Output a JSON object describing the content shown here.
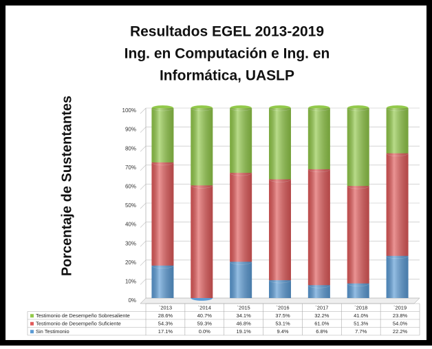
{
  "chart_data": {
    "type": "stacked-bar",
    "title": [
      "Resultados EGEL 2013-2019",
      "Ing. en Computación e Ing. en",
      "Informática, UASLP"
    ],
    "y_label": "Porcentaje de Sustentantes",
    "categories": [
      "`2013",
      "`2014",
      "`2015",
      "`2016",
      "`2017",
      "`2018",
      "`2019"
    ],
    "series": [
      {
        "name": "Testimonio de Desempeño Sobresaliente",
        "color": "#92c94a",
        "values": [
          28.6,
          40.7,
          34.1,
          37.5,
          32.2,
          41.0,
          23.8
        ],
        "value_labels": [
          "28.6%",
          "40.7%",
          "34.1%",
          "37.5%",
          "32.2%",
          "41.0%",
          "23.8%"
        ]
      },
      {
        "name": "Testimonio de Desempeño Suficiente",
        "color": "#e05a5a",
        "values": [
          54.3,
          59.3,
          46.8,
          53.1,
          61.0,
          51.3,
          54.0
        ],
        "value_labels": [
          "54.3%",
          "59.3%",
          "46.8%",
          "53.1%",
          "61.0%",
          "51.3%",
          "54.0%"
        ]
      },
      {
        "name": "Sin Testimonio",
        "color": "#5b9bd5",
        "values": [
          17.1,
          0.0,
          19.1,
          9.4,
          6.8,
          7.7,
          22.2
        ],
        "value_labels": [
          "17.1%",
          "0.0%",
          "19.1%",
          "9.4%",
          "6.8%",
          "7.7%",
          "22.2%"
        ]
      }
    ],
    "ylim": [
      0,
      100
    ],
    "yticks": [
      {
        "value": 0,
        "label": "0%"
      },
      {
        "value": 10,
        "label": "10%"
      },
      {
        "value": 20,
        "label": "20%"
      },
      {
        "value": 30,
        "label": "30%"
      },
      {
        "value": 40,
        "label": "40%"
      },
      {
        "value": 50,
        "label": "50%"
      },
      {
        "value": 60,
        "label": "60%"
      },
      {
        "value": 70,
        "label": "70%"
      },
      {
        "value": 80,
        "label": "80%"
      },
      {
        "value": 90,
        "label": "90%"
      },
      {
        "value": 100,
        "label": "100%"
      }
    ],
    "grid": true
  }
}
